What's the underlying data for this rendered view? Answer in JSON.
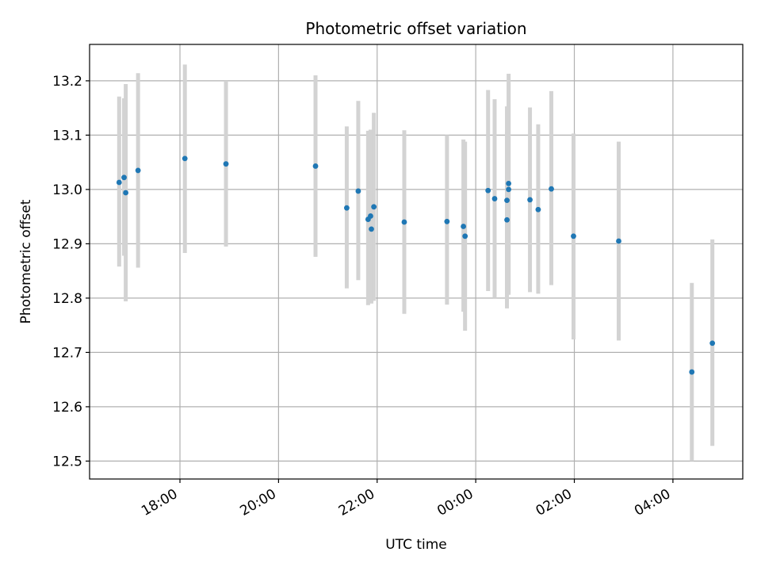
{
  "chart_data": {
    "type": "scatter",
    "title": "Photometric offset variation",
    "xlabel": "UTC time",
    "ylabel": "Photometric offset",
    "x_ticks": [
      "18:00",
      "20:00",
      "22:00",
      "00:00",
      "02:00",
      "04:00"
    ],
    "y_ticks": [
      "12.5",
      "12.6",
      "12.7",
      "12.8",
      "12.9",
      "13.0",
      "13.1",
      "13.2"
    ],
    "xlim": [
      "16:10",
      "05:25"
    ],
    "ylim": [
      12.467,
      13.267
    ],
    "grid": true,
    "colors": {
      "point": "#1f77b4",
      "errorbar": "#d3d3d3",
      "grid": "#b0b0b0"
    },
    "points": [
      {
        "x": "16:46",
        "y": 13.013,
        "ylow": 12.858,
        "yhigh": 13.171
      },
      {
        "x": "16:52",
        "y": 13.022,
        "ylow": 12.878,
        "yhigh": 13.168
      },
      {
        "x": "16:54",
        "y": 12.994,
        "ylow": 12.794,
        "yhigh": 13.194
      },
      {
        "x": "17:09",
        "y": 13.035,
        "ylow": 12.856,
        "yhigh": 13.214
      },
      {
        "x": "18:06",
        "y": 13.057,
        "ylow": 12.883,
        "yhigh": 13.23
      },
      {
        "x": "18:56",
        "y": 13.047,
        "ylow": 12.895,
        "yhigh": 13.2
      },
      {
        "x": "20:45",
        "y": 13.043,
        "ylow": 12.876,
        "yhigh": 13.21
      },
      {
        "x": "21:23",
        "y": 12.966,
        "ylow": 12.818,
        "yhigh": 13.116
      },
      {
        "x": "21:37",
        "y": 12.997,
        "ylow": 12.833,
        "yhigh": 13.163
      },
      {
        "x": "21:49",
        "y": 12.945,
        "ylow": 12.787,
        "yhigh": 13.108
      },
      {
        "x": "21:52",
        "y": 12.951,
        "ylow": 12.792,
        "yhigh": 13.11
      },
      {
        "x": "21:53",
        "y": 12.927,
        "ylow": 12.79,
        "yhigh": 13.085
      },
      {
        "x": "21:56",
        "y": 12.968,
        "ylow": 12.795,
        "yhigh": 13.141
      },
      {
        "x": "22:33",
        "y": 12.94,
        "ylow": 12.771,
        "yhigh": 13.109
      },
      {
        "x": "23:25",
        "y": 12.941,
        "ylow": 12.788,
        "yhigh": 13.1
      },
      {
        "x": "23:45",
        "y": 12.932,
        "ylow": 12.775,
        "yhigh": 13.092
      },
      {
        "x": "23:47",
        "y": 12.914,
        "ylow": 12.74,
        "yhigh": 13.088
      },
      {
        "x": "00:15",
        "y": 12.998,
        "ylow": 12.813,
        "yhigh": 13.183
      },
      {
        "x": "00:23",
        "y": 12.983,
        "ylow": 12.8,
        "yhigh": 13.166
      },
      {
        "x": "00:38",
        "y": 12.944,
        "ylow": 12.781,
        "yhigh": 13.153
      },
      {
        "x": "00:38",
        "y": 12.98,
        "ylow": 12.8,
        "yhigh": 13.106
      },
      {
        "x": "00:40",
        "y": 13.0,
        "ylow": 12.806,
        "yhigh": 13.196
      },
      {
        "x": "00:40",
        "y": 13.011,
        "ylow": 12.809,
        "yhigh": 13.213
      },
      {
        "x": "01:06",
        "y": 12.981,
        "ylow": 12.811,
        "yhigh": 13.151
      },
      {
        "x": "01:16",
        "y": 12.963,
        "ylow": 12.808,
        "yhigh": 13.12
      },
      {
        "x": "01:32",
        "y": 13.001,
        "ylow": 12.824,
        "yhigh": 13.181
      },
      {
        "x": "01:59",
        "y": 12.914,
        "ylow": 12.724,
        "yhigh": 13.103
      },
      {
        "x": "02:54",
        "y": 12.905,
        "ylow": 12.722,
        "yhigh": 13.088
      },
      {
        "x": "04:23",
        "y": 12.664,
        "ylow": 12.5,
        "yhigh": 12.828
      },
      {
        "x": "04:48",
        "y": 12.717,
        "ylow": 12.528,
        "yhigh": 12.908
      }
    ]
  }
}
